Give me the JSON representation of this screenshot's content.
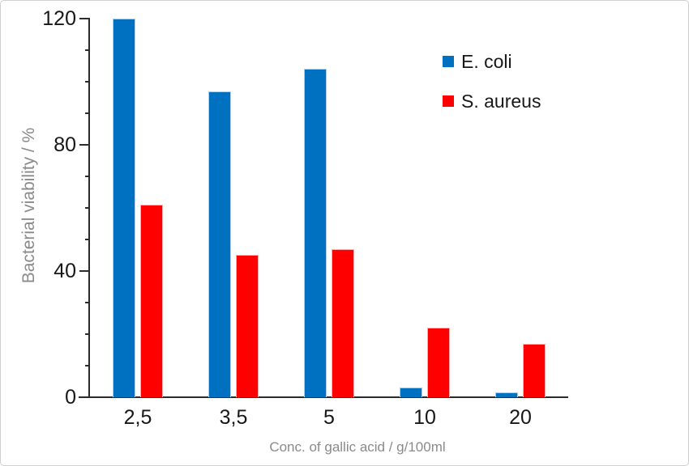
{
  "figure": {
    "background": "#ffffff",
    "border_color": "#cfcfcf"
  },
  "chart_data": {
    "type": "bar",
    "title": "",
    "categories": [
      "2,5",
      "3,5",
      "5",
      "10",
      "20"
    ],
    "series": [
      {
        "name": "E. coli",
        "color": "#0070C0",
        "border_color": "#AFCDEA",
        "values": [
          120,
          97,
          104,
          3,
          1.5
        ]
      },
      {
        "name": "S. aureus",
        "color": "#FF0000",
        "border_color": "#FFABAB",
        "values": [
          61,
          45,
          47,
          22,
          17
        ]
      }
    ],
    "xlabel": "Conc. of gallic acid / g/100ml",
    "ylabel": "Bacterial viability / %",
    "ylim": [
      0,
      120
    ],
    "y_major_ticks": [
      0,
      40,
      80,
      120
    ],
    "y_minor_step": 10,
    "grid": false,
    "legend_position": "top-right-inside",
    "axis_color": "#2b2b2b",
    "tick_label_color": "#171717",
    "axis_title_color": "#8a8a8a"
  }
}
